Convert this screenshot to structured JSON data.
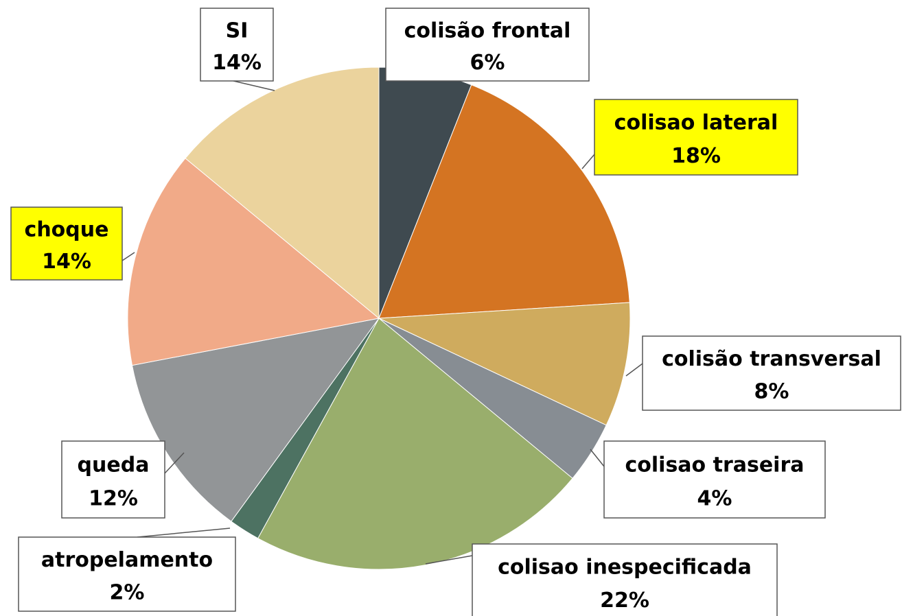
{
  "chart_data": {
    "type": "pie",
    "categories": [
      "colisão frontal",
      "colisao lateral",
      "colisão transversal",
      "colisao traseira",
      "colisao inespecificada",
      "atropelamento",
      "queda",
      "choque",
      "SI"
    ],
    "values": [
      6,
      18,
      8,
      4,
      22,
      2,
      12,
      14,
      14
    ],
    "value_labels": [
      "6%",
      "18%",
      "8%",
      "4%",
      "22%",
      "2%",
      "12%",
      "14%",
      "14%"
    ],
    "colors": [
      "#3f4a50",
      "#d47422",
      "#cfab5e",
      "#878d93",
      "#99ae6c",
      "#4d7262",
      "#929597",
      "#f1aa88",
      "#ebd39d"
    ],
    "label_colors": [
      "#ffffff",
      "#ffff00",
      "#ffffff",
      "#ffffff",
      "#ffffff",
      "#ffffff",
      "#ffffff",
      "#ffff00",
      "#ffffff"
    ]
  }
}
